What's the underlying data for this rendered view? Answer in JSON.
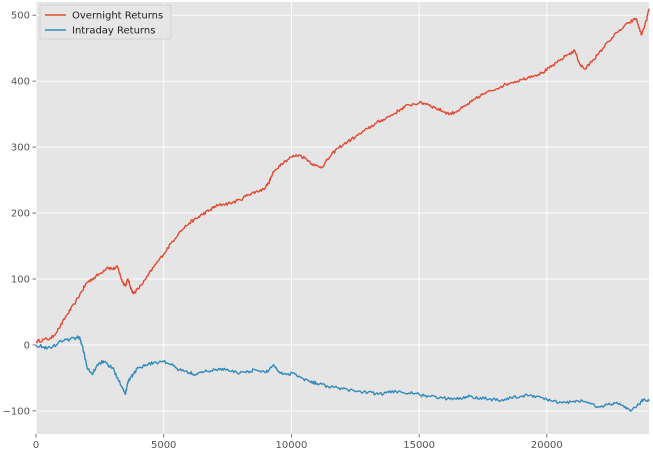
{
  "chart_data": {
    "type": "line",
    "title": "",
    "xlabel": "",
    "ylabel": "",
    "xlim": [
      0,
      24000
    ],
    "ylim": [
      -135,
      520
    ],
    "grid": true,
    "legend_position": "top-left",
    "x_ticks": [
      0,
      5000,
      10000,
      15000,
      20000
    ],
    "x_tick_labels": [
      "0",
      "5000",
      "10000",
      "15000",
      "20000"
    ],
    "y_ticks": [
      -100,
      0,
      100,
      200,
      300,
      400,
      500
    ],
    "y_tick_labels": [
      "−100",
      "0",
      "100",
      "200",
      "300",
      "400",
      "500"
    ],
    "colors": {
      "background": "#e5e5e5",
      "grid": "#ffffff",
      "axis_text": "#555555"
    },
    "series": [
      {
        "name": "Overnight Returns",
        "color": "#e24a33",
        "x": [
          0,
          300,
          600,
          900,
          1200,
          1500,
          1800,
          2000,
          2200,
          2500,
          2800,
          3000,
          3200,
          3300,
          3400,
          3500,
          3600,
          3700,
          3800,
          4000,
          4300,
          4600,
          5000,
          5300,
          5600,
          6000,
          6300,
          6500,
          6800,
          7000,
          7300,
          7600,
          8000,
          8300,
          8600,
          8900,
          9100,
          9300,
          9600,
          10000,
          10300,
          10600,
          10900,
          11200,
          11500,
          11800,
          12200,
          12600,
          13000,
          13300,
          13600,
          14000,
          14300,
          14600,
          15000,
          15300,
          15600,
          15900,
          16200,
          16500,
          16800,
          17100,
          17400,
          17800,
          18200,
          18600,
          19000,
          19400,
          19800,
          20100,
          20400,
          20800,
          21100,
          21300,
          21500,
          21800,
          22000,
          22400,
          22800,
          23200,
          23500,
          23700,
          23900,
          24000
        ],
        "y": [
          5,
          8,
          10,
          25,
          45,
          62,
          82,
          95,
          100,
          108,
          118,
          115,
          118,
          105,
          95,
          90,
          100,
          88,
          78,
          85,
          100,
          118,
          138,
          155,
          170,
          185,
          192,
          198,
          204,
          210,
          213,
          215,
          220,
          228,
          232,
          236,
          245,
          262,
          275,
          285,
          288,
          282,
          272,
          270,
          285,
          298,
          308,
          318,
          328,
          336,
          342,
          350,
          358,
          364,
          367,
          366,
          360,
          355,
          350,
          355,
          362,
          370,
          378,
          385,
          392,
          398,
          402,
          408,
          412,
          420,
          428,
          440,
          446,
          425,
          418,
          432,
          440,
          460,
          475,
          488,
          495,
          470,
          492,
          510
        ]
      },
      {
        "name": "Intraday Returns",
        "color": "#348abd",
        "x": [
          0,
          300,
          600,
          900,
          1200,
          1500,
          1700,
          1800,
          1900,
          2000,
          2200,
          2400,
          2600,
          2800,
          3000,
          3200,
          3400,
          3500,
          3600,
          3700,
          3800,
          4000,
          4300,
          4600,
          5000,
          5300,
          5600,
          6000,
          6300,
          6600,
          7000,
          7300,
          7600,
          8000,
          8300,
          8600,
          9000,
          9300,
          9500,
          9800,
          10100,
          10400,
          10700,
          11000,
          11400,
          11800,
          12200,
          12600,
          13000,
          13400,
          13800,
          14200,
          14600,
          15000,
          15400,
          15800,
          16200,
          16600,
          17000,
          17400,
          17800,
          18200,
          18600,
          19000,
          19400,
          19800,
          20200,
          20600,
          21000,
          21400,
          21700,
          22000,
          22400,
          22700,
          23000,
          23300,
          23600,
          23800,
          24000
        ],
        "y": [
          0,
          -3,
          -5,
          5,
          8,
          10,
          12,
          0,
          -15,
          -35,
          -45,
          -30,
          -25,
          -30,
          -35,
          -50,
          -65,
          -75,
          -55,
          -50,
          -45,
          -35,
          -30,
          -27,
          -25,
          -30,
          -38,
          -42,
          -45,
          -40,
          -38,
          -36,
          -40,
          -42,
          -40,
          -38,
          -42,
          -30,
          -40,
          -45,
          -42,
          -50,
          -55,
          -58,
          -62,
          -65,
          -68,
          -70,
          -72,
          -75,
          -72,
          -70,
          -73,
          -75,
          -78,
          -80,
          -82,
          -80,
          -78,
          -80,
          -82,
          -84,
          -80,
          -78,
          -76,
          -80,
          -85,
          -88,
          -86,
          -85,
          -88,
          -95,
          -90,
          -88,
          -92,
          -100,
          -90,
          -82,
          -85
        ]
      }
    ]
  }
}
